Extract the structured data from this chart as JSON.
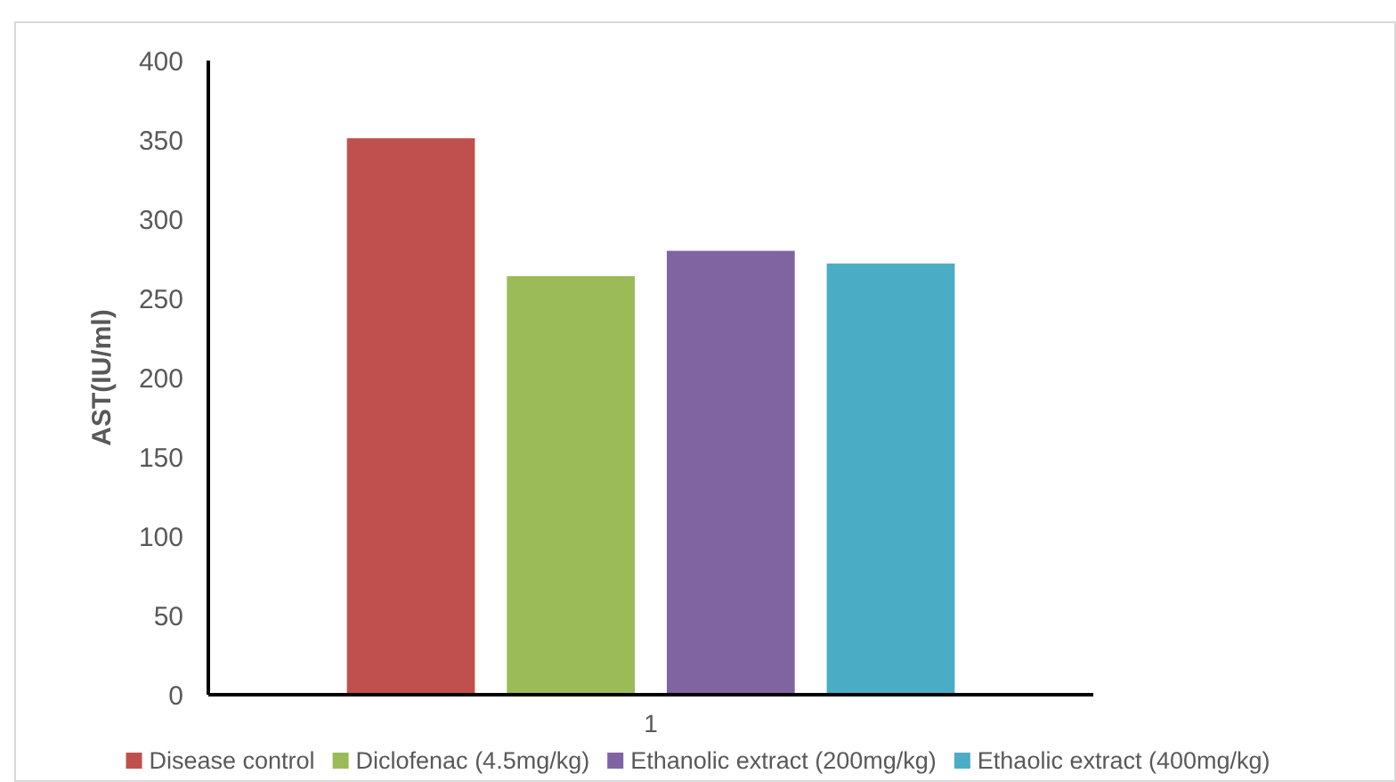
{
  "chart_data": {
    "type": "bar",
    "ylabel": "AST(IU/ml)",
    "categories": [
      "1"
    ],
    "series": [
      {
        "name": "Disease control",
        "color": "#c0504d",
        "values": [
          351
        ]
      },
      {
        "name": "Diclofenac (4.5mg/kg)",
        "color": "#9bbb59",
        "values": [
          264
        ]
      },
      {
        "name": "Ethanolic extract (200mg/kg)",
        "color": "#8064a2",
        "values": [
          280
        ]
      },
      {
        "name": "Ethaolic extract (400mg/kg)",
        "color": "#4bacc6",
        "values": [
          272
        ]
      }
    ],
    "ylim": [
      0,
      400
    ],
    "yticks": [
      0,
      50,
      100,
      150,
      200,
      250,
      300,
      350,
      400
    ],
    "legend": "bottom"
  }
}
